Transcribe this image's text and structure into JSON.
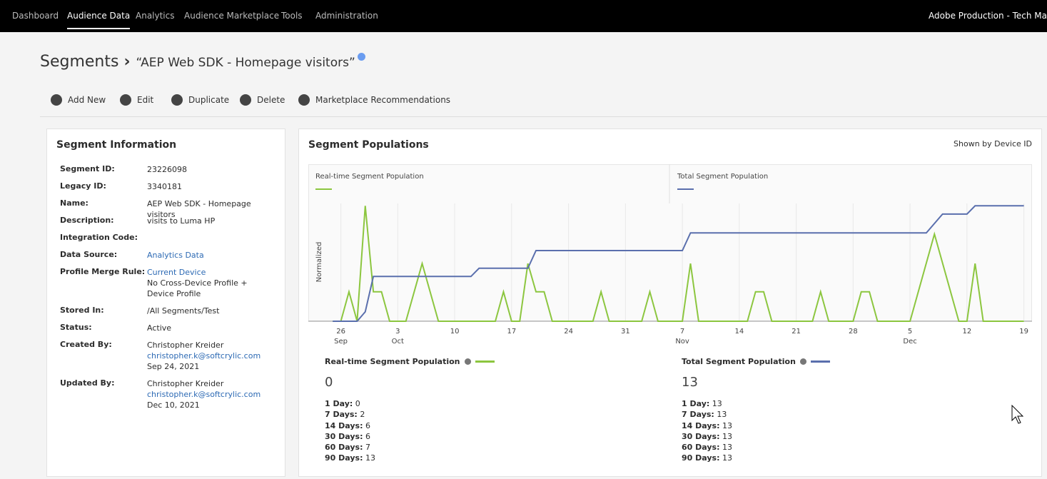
{
  "nav": {
    "items": [
      "Dashboard",
      "Audience Data",
      "Analytics",
      "Audience Marketplace",
      "Tools",
      "Administration"
    ],
    "active": 1,
    "org": "Adobe Production - Tech Ma"
  },
  "breadcrumb": {
    "parent": "Segments",
    "current": "“AEP Web SDK - Homepage visitors”"
  },
  "toolbar": [
    "Add New",
    "Edit",
    "Duplicate",
    "Delete",
    "Marketplace Recommendations"
  ],
  "info": {
    "title": "Segment Information",
    "fields": [
      {
        "label": "Segment ID:",
        "lines": [
          "23226098"
        ]
      },
      {
        "label": "Legacy ID:",
        "lines": [
          "3340181"
        ]
      },
      {
        "label": "Name:",
        "lines": [
          "AEP Web SDK - Homepage visitors"
        ]
      },
      {
        "label": "Description:",
        "lines": [
          "visits to Luma HP"
        ]
      },
      {
        "label": "Integration Code:",
        "lines": []
      },
      {
        "label": "Data Source:",
        "lines": [
          "Analytics Data"
        ],
        "links": [
          0
        ]
      },
      {
        "label": "Profile Merge Rule:",
        "lines": [
          "Current Device",
          "No Cross-Device Profile + Device Profile"
        ],
        "links": [
          0
        ]
      },
      {
        "label": "Stored In:",
        "lines": [
          "/All Segments/Test"
        ]
      },
      {
        "label": "Status:",
        "lines": [
          "Active"
        ]
      },
      {
        "label": "Created By:",
        "lines": [
          "Christopher Kreider",
          "christopher.k@softcrylic.com",
          "Sep 24, 2021"
        ],
        "links": [
          1
        ]
      },
      {
        "label": "Updated By:",
        "lines": [
          "Christopher Kreider",
          "christopher.k@softcrylic.com",
          "Dec 10, 2021"
        ],
        "links": [
          1
        ]
      }
    ]
  },
  "populations": {
    "title": "Segment Populations",
    "shown_by": "Shown by Device ID",
    "stats": [
      {
        "title": "Real-time Segment Population",
        "total": 0,
        "rows": [
          {
            "label": "1 Day:",
            "value": 0
          },
          {
            "label": "7 Days:",
            "value": 2
          },
          {
            "label": "14 Days:",
            "value": 6
          },
          {
            "label": "30 Days:",
            "value": 6
          },
          {
            "label": "60 Days:",
            "value": 7
          },
          {
            "label": "90 Days:",
            "value": 13
          }
        ]
      },
      {
        "title": "Total Segment Population",
        "total": 13,
        "rows": [
          {
            "label": "1 Day:",
            "value": 13
          },
          {
            "label": "7 Days:",
            "value": 13
          },
          {
            "label": "14 Days:",
            "value": 13
          },
          {
            "label": "30 Days:",
            "value": 13
          },
          {
            "label": "60 Days:",
            "value": 13
          },
          {
            "label": "90 Days:",
            "value": 13
          }
        ]
      }
    ]
  },
  "chart_data": {
    "type": "line",
    "y_label": "Normalized",
    "grid": true,
    "xlim": [
      "Sep 22",
      "Dec 20"
    ],
    "ylim": [
      0,
      1
    ],
    "xticks": [
      {
        "value": "Sep 26",
        "label": "26",
        "month": "Sep"
      },
      {
        "value": "Oct 3",
        "label": "3",
        "month": "Oct"
      },
      {
        "value": "Oct 10",
        "label": "10"
      },
      {
        "value": "Oct 17",
        "label": "17"
      },
      {
        "value": "Oct 24",
        "label": "24"
      },
      {
        "value": "Oct 31",
        "label": "31"
      },
      {
        "value": "Nov 7",
        "label": "7",
        "month": "Nov"
      },
      {
        "value": "Nov 14",
        "label": "14"
      },
      {
        "value": "Nov 21",
        "label": "21"
      },
      {
        "value": "Nov 28",
        "label": "28"
      },
      {
        "value": "Dec 5",
        "label": "5",
        "month": "Dec"
      },
      {
        "value": "Dec 12",
        "label": "12"
      },
      {
        "value": "Dec 19",
        "label": "19"
      }
    ],
    "series": [
      {
        "name": "Real-time Segment Population",
        "color": "#8cc63f",
        "x": [
          "Sep 25",
          "Sep 26",
          "Sep 27",
          "Sep 28",
          "Sep 29",
          "Sep 30",
          "Oct 1",
          "Oct 2",
          "Oct 4",
          "Oct 6",
          "Oct 8",
          "Oct 15",
          "Oct 16",
          "Oct 17",
          "Oct 18",
          "Oct 19",
          "Oct 20",
          "Oct 21",
          "Oct 22",
          "Oct 27",
          "Oct 28",
          "Oct 29",
          "Nov 2",
          "Nov 3",
          "Nov 4",
          "Nov 7",
          "Nov 8",
          "Nov 9",
          "Nov 15",
          "Nov 16",
          "Nov 17",
          "Nov 18",
          "Nov 23",
          "Nov 24",
          "Nov 25",
          "Nov 28",
          "Nov 29",
          "Nov 30",
          "Dec 1",
          "Dec 5",
          "Dec 8",
          "Dec 11",
          "Dec 12",
          "Dec 13",
          "Dec 14",
          "Dec 19"
        ],
        "values": [
          0,
          0,
          0.25,
          0,
          0.98,
          0.25,
          0.25,
          0,
          0,
          0.49,
          0,
          0,
          0.25,
          0,
          0,
          0.49,
          0.25,
          0.25,
          0,
          0,
          0.25,
          0,
          0,
          0.25,
          0,
          0,
          0.49,
          0,
          0,
          0.25,
          0.25,
          0,
          0,
          0.25,
          0,
          0,
          0.25,
          0.25,
          0,
          0,
          0.74,
          0,
          0,
          0.49,
          0,
          0
        ]
      },
      {
        "name": "Total Segment Population",
        "color": "#5a6fad",
        "x": [
          "Sep 25",
          "Sep 28",
          "Sep 29",
          "Sep 30",
          "Oct 12",
          "Oct 13",
          "Oct 19",
          "Oct 20",
          "Nov 7",
          "Nov 8",
          "Dec 7",
          "Dec 9",
          "Dec 12",
          "Dec 13",
          "Dec 19"
        ],
        "values": [
          0,
          0,
          0.08,
          0.38,
          0.38,
          0.45,
          0.45,
          0.6,
          0.6,
          0.75,
          0.75,
          0.91,
          0.91,
          0.98,
          0.98
        ]
      }
    ]
  }
}
